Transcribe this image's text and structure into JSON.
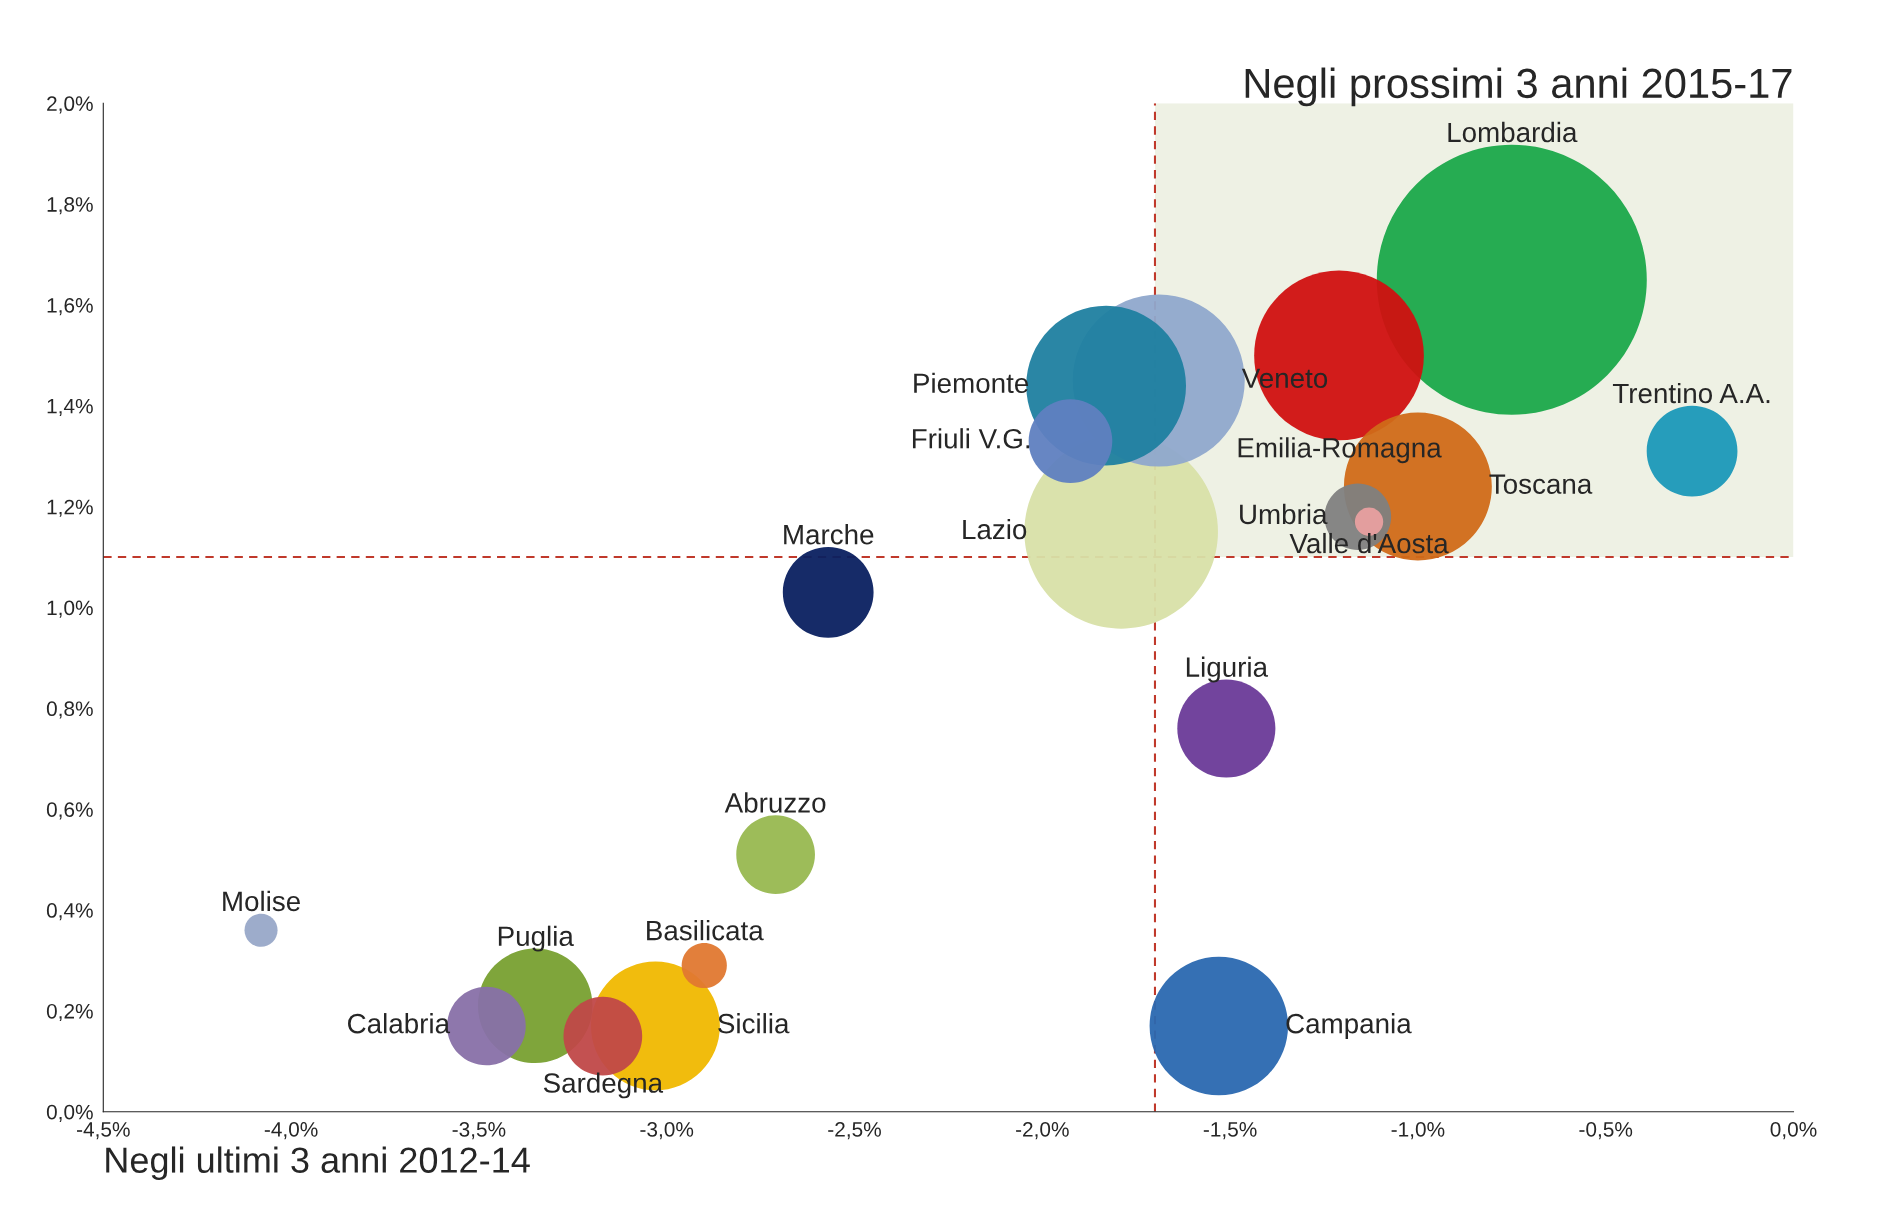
{
  "chart_data": {
    "type": "bubble",
    "xlabel": "Negli ultimi 3 anni 2012-14",
    "ylabel": "Negli prossimi 3 anni 2015-17",
    "series": [
      {
        "name": "Lombardia",
        "color": "#1aa84a",
        "x": [
          -0.75
        ],
        "values": [
          1.65
        ],
        "sizes": [
          1
        ]
      },
      {
        "name": "Emilia-Romagna",
        "color": "#d01010",
        "x": [
          -1.21
        ],
        "values": [
          1.5
        ],
        "sizes": [
          0.395
        ]
      },
      {
        "name": "Veneto",
        "color": "#8fa8cc",
        "x": [
          -1.69
        ],
        "values": [
          1.45
        ],
        "sizes": [
          0.406
        ]
      },
      {
        "name": "Piemonte",
        "color": "#1f7fa0",
        "x": [
          -1.83
        ],
        "values": [
          1.44
        ],
        "sizes": [
          0.35
        ]
      },
      {
        "name": "Friuli V.G.",
        "color": "#5f80c0",
        "x": [
          -1.925
        ],
        "values": [
          1.33
        ],
        "sizes": [
          0.096
        ]
      },
      {
        "name": "Lazio",
        "color": "#d8e0a8",
        "x": [
          -1.79
        ],
        "values": [
          1.15
        ],
        "sizes": [
          0.514
        ]
      },
      {
        "name": "Toscana",
        "color": "#d06a18",
        "x": [
          -1.0
        ],
        "values": [
          1.24
        ],
        "sizes": [
          0.3
        ]
      },
      {
        "name": "Umbria",
        "color": "#808080",
        "x": [
          -1.16
        ],
        "values": [
          1.18
        ],
        "sizes": [
          0.061
        ]
      },
      {
        "name": "Valle d'Aosta",
        "color": "#e8a0a0",
        "x": [
          -1.13
        ],
        "values": [
          1.17
        ],
        "sizes": [
          0.011
        ]
      },
      {
        "name": "Trentino A.A.",
        "color": "#1a98b8",
        "x": [
          -0.27
        ],
        "values": [
          1.31
        ],
        "sizes": [
          0.113
        ]
      },
      {
        "name": "Marche",
        "color": "#0a2060",
        "x": [
          -2.57
        ],
        "values": [
          1.03
        ],
        "sizes": [
          0.113
        ]
      },
      {
        "name": "Liguria",
        "color": "#6a3a98",
        "x": [
          -1.51
        ],
        "values": [
          0.76
        ],
        "sizes": [
          0.132
        ]
      },
      {
        "name": "Campania",
        "color": "#2a68b0",
        "x": [
          -1.53
        ],
        "values": [
          0.17
        ],
        "sizes": [
          0.263
        ]
      },
      {
        "name": "Abruzzo",
        "color": "#98b850",
        "x": [
          -2.71
        ],
        "values": [
          0.51
        ],
        "sizes": [
          0.085
        ]
      },
      {
        "name": "Molise",
        "color": "#98a8c8",
        "x": [
          -4.08
        ],
        "values": [
          0.36
        ],
        "sizes": [
          0.015
        ]
      },
      {
        "name": "Basilicata",
        "color": "#e07830",
        "x": [
          -2.9
        ],
        "values": [
          0.29
        ],
        "sizes": [
          0.028
        ]
      },
      {
        "name": "Puglia",
        "color": "#78a030",
        "x": [
          -3.35
        ],
        "values": [
          0.21
        ],
        "sizes": [
          0.18
        ]
      },
      {
        "name": "Sicilia",
        "color": "#f0b800",
        "x": [
          -3.03
        ],
        "values": [
          0.17
        ],
        "sizes": [
          0.228
        ]
      },
      {
        "name": "Calabria",
        "color": "#8870a8",
        "x": [
          -3.48
        ],
        "values": [
          0.17
        ],
        "sizes": [
          0.085
        ]
      },
      {
        "name": "Sardegna",
        "color": "#c04848",
        "x": [
          -3.17
        ],
        "values": [
          0.15
        ],
        "sizes": [
          0.085
        ]
      }
    ],
    "xlim": [
      -4.5,
      0
    ],
    "xticks": [
      {
        "value": -4.5,
        "label": "-4,5%"
      },
      {
        "value": -4.0,
        "label": "-4,0%"
      },
      {
        "value": -3.5,
        "label": "-3,5%"
      },
      {
        "value": -3.0,
        "label": "-3,0%"
      },
      {
        "value": -2.5,
        "label": "-2,5%"
      },
      {
        "value": -2.0,
        "label": "-2,0%"
      },
      {
        "value": -1.5,
        "label": "-1,5%"
      },
      {
        "value": -1.0,
        "label": "-1,0%"
      },
      {
        "value": -0.5,
        "label": "-0,5%"
      },
      {
        "value": 0,
        "label": "0,0%"
      }
    ],
    "ylim": [
      0,
      2.0
    ],
    "yticks": [
      {
        "value": 0,
        "label": "0,0%"
      },
      {
        "value": 0.2,
        "label": "0,2%"
      },
      {
        "value": 0.4,
        "label": "0,4%"
      },
      {
        "value": 0.6,
        "label": "0,6%"
      },
      {
        "value": 0.8,
        "label": "0,8%"
      },
      {
        "value": 1.0,
        "label": "1,0%"
      },
      {
        "value": 1.2,
        "label": "1,2%"
      },
      {
        "value": 1.4,
        "label": "1,4%"
      },
      {
        "value": 1.6,
        "label": "1,6%"
      },
      {
        "value": 1.8,
        "label": "1,8%"
      },
      {
        "value": 2.0,
        "label": "2,0%"
      }
    ],
    "ref_lines": [
      {
        "axis": "x",
        "value": -1.7,
        "color": "#c0392b",
        "line_style": "dashed"
      },
      {
        "axis": "y",
        "value": 1.1,
        "color": "#c0392b",
        "line_style": "dashed"
      }
    ],
    "bands": [
      {
        "axis": "y",
        "from": 1.1,
        "to": 2.0,
        "color": "#eef1e4"
      }
    ],
    "grid": false,
    "legend": false
  }
}
